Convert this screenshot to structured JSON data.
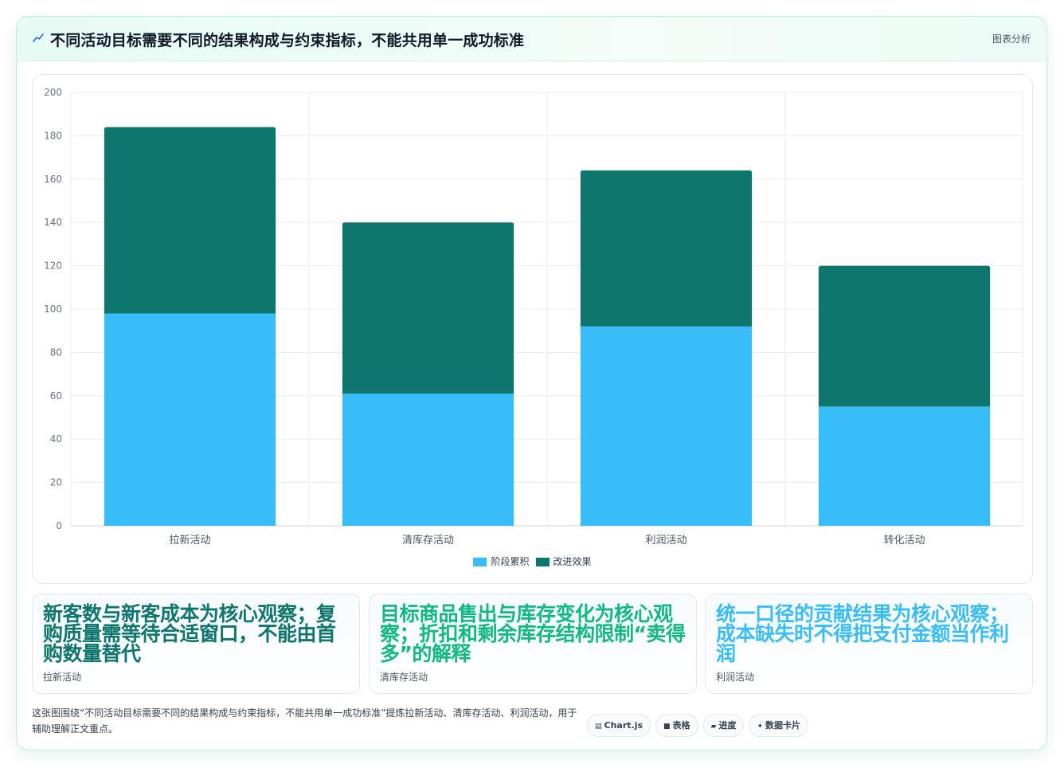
{
  "header": {
    "title": "不同活动目标需要不同的结果构成与约束指标，不能共用单一成功标准",
    "tag": "图表分析"
  },
  "chart_data": {
    "type": "bar",
    "stacked": true,
    "categories": [
      "拉新活动",
      "清库存活动",
      "利润活动",
      "转化活动"
    ],
    "series": [
      {
        "name": "阶段累积",
        "color": "#38bdf8",
        "values": [
          98,
          61,
          92,
          55
        ]
      },
      {
        "name": "改进效果",
        "color": "#0f766e",
        "values": [
          86,
          79,
          72,
          65
        ]
      }
    ],
    "ylim": [
      0,
      200
    ],
    "yticks": [
      0,
      20,
      40,
      60,
      80,
      100,
      120,
      140,
      160,
      180,
      200
    ],
    "grid": true,
    "legend": "bottom"
  },
  "notes": [
    {
      "main": "新客数与新客成本为核心观察；复购质量需等待合适窗口，不能由首购数量替代",
      "sub": "拉新活动",
      "color": "#0f766e"
    },
    {
      "main": "目标商品售出与库存变化为核心观察；折扣和剩余库存结构限制“卖得多”的解释",
      "sub": "清库存活动",
      "color": "#10b981"
    },
    {
      "main": "统一口径的贡献结果为核心观察；成本缺失时不得把支付金额当作利润",
      "sub": "利润活动",
      "color": "#38bdf8"
    }
  ],
  "footer": {
    "description": "这张图围绕“不同活动目标需要不同的结果构成与约束指标，不能共用单一成功标准”提炼拉新活动、清库存活动、利润活动，用于辅助理解正文重点。",
    "chips": [
      {
        "glyph": "▤",
        "label": "Chart.js"
      },
      {
        "glyph": "■",
        "label": "表格"
      },
      {
        "glyph": "▰",
        "label": "进度"
      },
      {
        "glyph": "✦",
        "label": "数据卡片"
      }
    ]
  }
}
